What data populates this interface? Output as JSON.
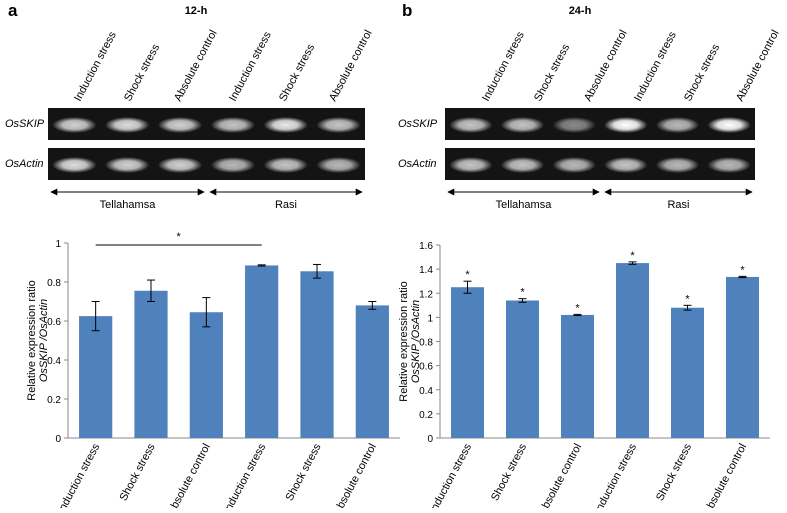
{
  "panels": [
    {
      "label": "a",
      "title": "12-h",
      "lanes": [
        "Induction stress",
        "Shock stress",
        "Absolute control",
        "Induction stress",
        "Shock stress",
        "Absolute control"
      ],
      "genes": [
        "OsSKIP",
        "OsActin"
      ],
      "groups": [
        "Tellahamsa",
        "Rasi"
      ]
    },
    {
      "label": "b",
      "title": "24-h",
      "lanes": [
        "Induction stress",
        "Shock stress",
        "Absolute control",
        "Induction stress",
        "Shock stress",
        "Absolute control"
      ],
      "genes": [
        "OsSKIP",
        "OsActin"
      ],
      "groups": [
        "Tellahamsa",
        "Rasi"
      ]
    }
  ],
  "chart_data": [
    {
      "type": "bar",
      "y_label": [
        "Relative expression ratio",
        "OsSKIP /OsActin"
      ],
      "categories": [
        "Induction stress",
        "Shock stress",
        "Absolute control",
        "Induction stress",
        "Shock stress",
        "Absolute control"
      ],
      "values": [
        0.625,
        0.755,
        0.645,
        0.885,
        0.855,
        0.68
      ],
      "errors": [
        0.075,
        0.055,
        0.075,
        0.003,
        0.035,
        0.02
      ],
      "color": "#4f81bd",
      "ylim": [
        0,
        1
      ],
      "yticks": [
        0,
        0.2,
        0.4,
        0.6,
        0.8,
        1
      ],
      "bracket": {
        "text": "*",
        "from": 0,
        "to": 3
      }
    },
    {
      "type": "bar",
      "y_label": [
        "Relative expression ratio",
        "OsSKIP /OsActin"
      ],
      "categories": [
        "Induction stress",
        "Shock stress",
        "Absolute control",
        "Induction stress",
        "Shock stress",
        "Absolute control"
      ],
      "values": [
        1.25,
        1.14,
        1.02,
        1.45,
        1.08,
        1.335
      ],
      "errors": [
        0.05,
        0.015,
        0.005,
        0.01,
        0.02,
        0.005
      ],
      "markers": [
        "*",
        "*",
        "*",
        "*",
        "*",
        "*"
      ],
      "color": "#4f81bd",
      "ylim": [
        0,
        1.6
      ],
      "yticks": [
        0,
        0.2,
        0.4,
        0.6,
        0.8,
        1,
        1.2,
        1.4,
        1.6
      ]
    }
  ]
}
